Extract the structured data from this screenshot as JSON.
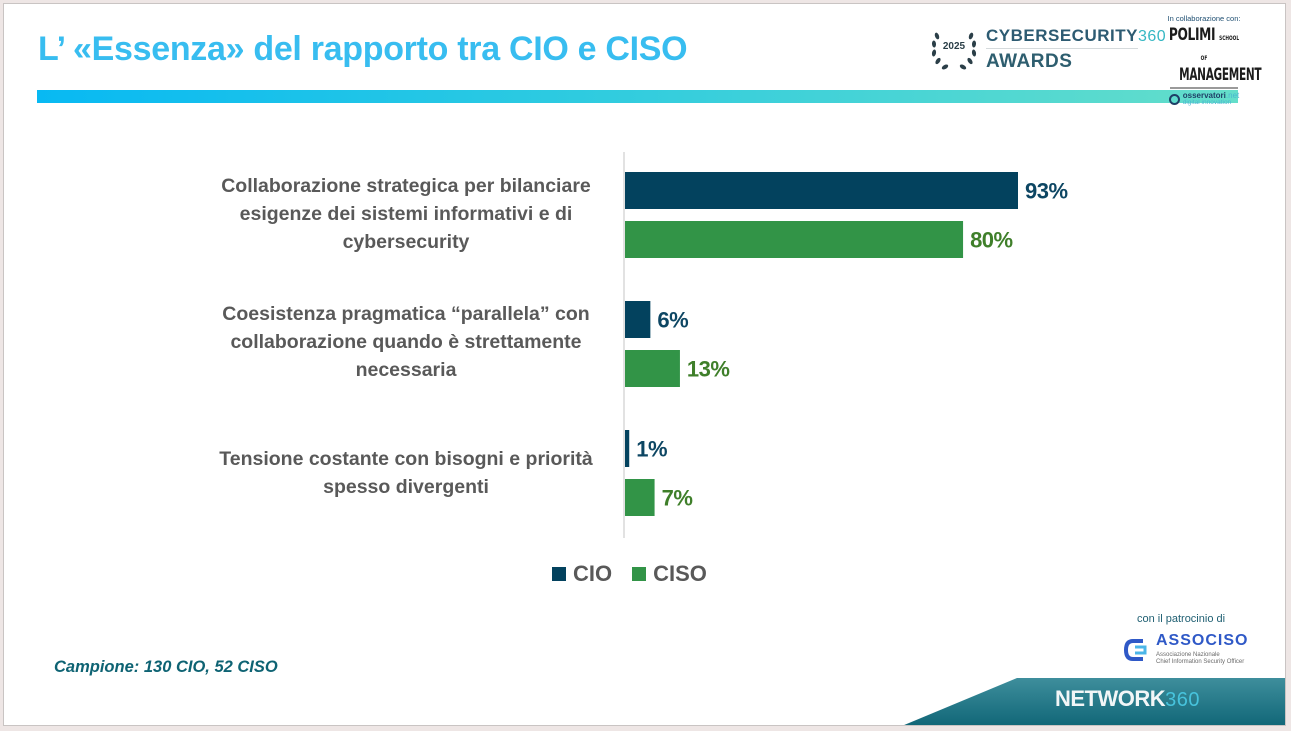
{
  "header": {
    "title": "L’ «Essenza» del rapporto tra CIO e CISO"
  },
  "logos": {
    "awards": {
      "year": "2025",
      "line1": "CYBERSECURITY",
      "line1_suffix": "360",
      "line2": "AWARDS"
    },
    "collaboration": {
      "label": "In collaborazione con:",
      "polimi_line1": "POLIMI",
      "polimi_school": "SCHOOL OF",
      "polimi_line2": "MANAGEMENT",
      "osservatori_name": "osservatori",
      "osservatori_tld": ".net",
      "osservatori_sub": "digital innovation"
    },
    "patronage": {
      "label": "con il patrocinio di",
      "name": "ASSOCISO",
      "sub1": "Associazione Nazionale",
      "sub2": "Chief Information Security Officer"
    },
    "network": {
      "name": "NETWORK",
      "suffix": "360"
    }
  },
  "footer": {
    "sample": "Campione: 130 CIO, 52 CISO"
  },
  "colors": {
    "title": "#38bdf0",
    "cio": "#03425e",
    "ciso": "#329447",
    "cio_label": "#0d4663",
    "ciso_label": "#3f7f2a",
    "category_text": "#595959",
    "axis": "#d9d9d9"
  },
  "chart_data": {
    "type": "bar",
    "orientation": "horizontal",
    "title": "L’ «Essenza» del rapporto tra CIO e CISO",
    "xlabel": "",
    "ylabel": "",
    "xlim": [
      0,
      100
    ],
    "unit": "%",
    "grid": false,
    "legend_position": "bottom",
    "categories": [
      "Collaborazione strategica per bilanciare esigenze dei sistemi informativi e di cybersecurity",
      "Coesistenza pragmatica “parallela”  con collaborazione quando è strettamente necessaria",
      "Tensione costante con bisogni e priorità spesso divergenti"
    ],
    "category_lines": [
      [
        "Collaborazione strategica per bilanciare",
        "esigenze dei sistemi informativi e di",
        "cybersecurity"
      ],
      [
        "Coesistenza pragmatica “parallela”  con",
        "collaborazione quando è strettamente",
        "necessaria"
      ],
      [
        "Tensione costante con bisogni e priorità",
        "spesso divergenti"
      ]
    ],
    "series": [
      {
        "name": "CIO",
        "values": [
          93,
          6,
          1
        ],
        "labels": [
          "93%",
          "6%",
          "1%"
        ]
      },
      {
        "name": "CISO",
        "values": [
          80,
          13,
          7
        ],
        "labels": [
          "80%",
          "13%",
          "7%"
        ]
      }
    ]
  }
}
